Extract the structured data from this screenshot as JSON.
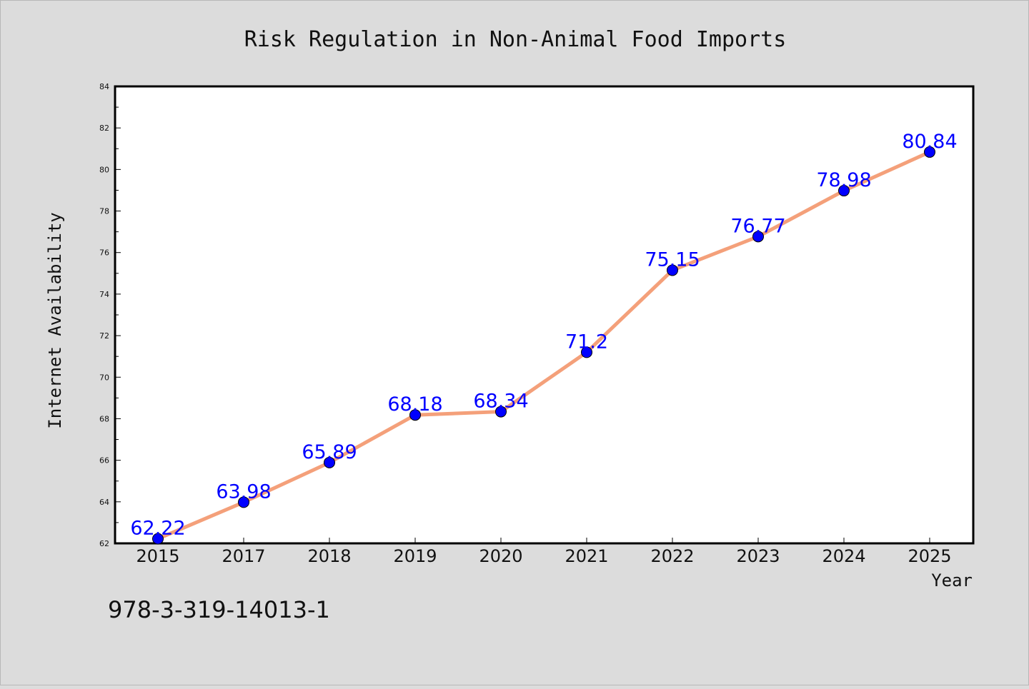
{
  "chart_data": {
    "type": "line",
    "title": "Risk Regulation in Non-Animal Food Imports",
    "xlabel": "Year",
    "ylabel": "Internet Availability",
    "categories": [
      "2015",
      "2017",
      "2018",
      "2019",
      "2020",
      "2021",
      "2022",
      "2023",
      "2024",
      "2025"
    ],
    "series": [
      {
        "values": [
          62.22,
          63.98,
          65.89,
          68.18,
          68.34,
          71.2,
          75.15,
          76.77,
          78.98,
          80.84
        ],
        "labels": [
          "62.22",
          "63.98",
          "65.89",
          "68.18",
          "68.34",
          "71.2",
          "75.15",
          "76.77",
          "78.98",
          "80.84"
        ],
        "line_color": "#f4a07a",
        "marker_color": "#0000ff"
      }
    ],
    "ylim": [
      62,
      84
    ],
    "yticks": [
      "62",
      "64",
      "66",
      "68",
      "70",
      "72",
      "74",
      "76",
      "78",
      "80",
      "82",
      "84"
    ],
    "grid": false,
    "legend": "none"
  },
  "footer_text": "978-3-319-14013-1"
}
